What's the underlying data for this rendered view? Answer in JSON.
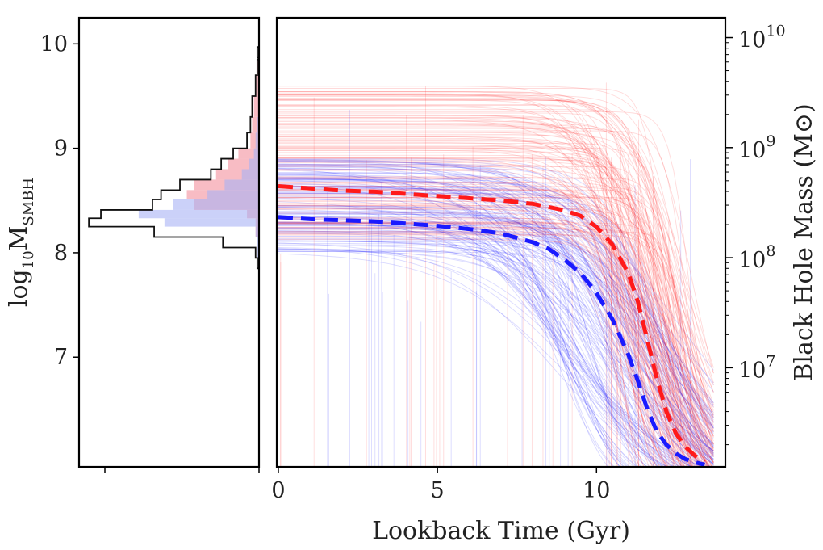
{
  "chart_data": [
    {
      "type": "histogram",
      "panel": "left",
      "orientation": "horizontal",
      "ylabel_main": "log",
      "ylabel_base": "10",
      "ylabel_var": "M",
      "ylabel_sub": "SMBH",
      "ylim": [
        5.95,
        10.25
      ],
      "yticks": [
        7,
        8,
        9,
        10
      ],
      "ytick_labels": [
        "7",
        "8",
        "9",
        "10"
      ],
      "colors": {
        "outline": "#111111",
        "red_fill": "#f5a6b0",
        "blue_fill": "#a8b2f5",
        "overlap_fill": "#c8a3d8"
      },
      "bins": [
        {
          "y0": 7.85,
          "y1": 7.95,
          "outline": 0.01,
          "red": 0.0,
          "blue": 0.005
        },
        {
          "y0": 7.95,
          "y1": 8.05,
          "outline": 0.02,
          "red": 0.0,
          "blue": 0.01
        },
        {
          "y0": 8.05,
          "y1": 8.15,
          "outline": 0.21,
          "red": 0.0,
          "blue": 0.01
        },
        {
          "y0": 8.15,
          "y1": 8.25,
          "outline": 0.61,
          "red": 0.02,
          "blue": 0.02
        },
        {
          "y0": 8.25,
          "y1": 8.33,
          "outline": 0.99,
          "red": 0.02,
          "blue": 0.55
        },
        {
          "y0": 8.33,
          "y1": 8.41,
          "outline": 0.92,
          "red": 0.07,
          "blue": 0.7
        },
        {
          "y0": 8.41,
          "y1": 8.51,
          "outline": 0.62,
          "red": 0.38,
          "blue": 0.5
        },
        {
          "y0": 8.51,
          "y1": 8.6,
          "outline": 0.57,
          "red": 0.42,
          "blue": 0.3
        },
        {
          "y0": 8.6,
          "y1": 8.7,
          "outline": 0.46,
          "red": 0.38,
          "blue": 0.2
        },
        {
          "y0": 8.7,
          "y1": 8.8,
          "outline": 0.28,
          "red": 0.25,
          "blue": 0.1
        },
        {
          "y0": 8.8,
          "y1": 8.9,
          "outline": 0.22,
          "red": 0.18,
          "blue": 0.06
        },
        {
          "y0": 8.9,
          "y1": 9.0,
          "outline": 0.15,
          "red": 0.12,
          "blue": 0.03
        },
        {
          "y0": 9.0,
          "y1": 9.15,
          "outline": 0.07,
          "red": 0.05,
          "blue": 0.02
        },
        {
          "y0": 9.15,
          "y1": 9.3,
          "outline": 0.05,
          "red": 0.04,
          "blue": 0.01
        },
        {
          "y0": 9.3,
          "y1": 9.5,
          "outline": 0.04,
          "red": 0.03,
          "blue": 0.005
        },
        {
          "y0": 9.5,
          "y1": 9.7,
          "outline": 0.02,
          "red": 0.02,
          "blue": 0.0
        },
        {
          "y0": 9.7,
          "y1": 9.85,
          "outline": 0.01,
          "red": 0.01,
          "blue": 0.0
        },
        {
          "y0": 9.88,
          "y1": 9.97,
          "outline": 0.01,
          "red": 0.0,
          "blue": 0.0
        }
      ]
    },
    {
      "type": "line",
      "panel": "right",
      "xlabel": "Lookback Time (Gyr)",
      "ylabel": "Black Hole Mass (M",
      "ylabel_symbol": "⊙",
      "ylabel_close": ")",
      "xlim": [
        -0.05,
        14.05
      ],
      "xticks": [
        0,
        5,
        10
      ],
      "xtick_labels": [
        "0",
        "5",
        "10"
      ],
      "yscale": "log",
      "ylim_log10": [
        6.1,
        10.18
      ],
      "yticks_log10": [
        7,
        8,
        9,
        10
      ],
      "ytick_base": "10",
      "ytick_exponents": [
        "7",
        "8",
        "9",
        "10"
      ],
      "colors": {
        "red": "#ff1a1a",
        "blue": "#1a1aff"
      },
      "series": [
        {
          "color": "#ff1a1a",
          "style": "dashed",
          "x": [
            0,
            1,
            2,
            3,
            4,
            5,
            6,
            7,
            8,
            9,
            9.5,
            10,
            10.5,
            11,
            11.3,
            11.6,
            11.9,
            12.2,
            12.5,
            12.8,
            13.1,
            13.4
          ],
          "y_log10": [
            8.65,
            8.63,
            8.61,
            8.6,
            8.58,
            8.56,
            8.54,
            8.52,
            8.49,
            8.43,
            8.38,
            8.28,
            8.12,
            7.86,
            7.6,
            7.25,
            6.9,
            6.6,
            6.4,
            6.28,
            6.2,
            6.15
          ]
        },
        {
          "color": "#1a1aff",
          "style": "dashed",
          "x": [
            0,
            1,
            2,
            3,
            4,
            5,
            6,
            7,
            8,
            8.5,
            9,
            9.5,
            10,
            10.5,
            11,
            11.3,
            11.6,
            11.9,
            12.2,
            12.5,
            12.8,
            13.1,
            13.4
          ],
          "y_log10": [
            8.37,
            8.35,
            8.34,
            8.33,
            8.31,
            8.29,
            8.26,
            8.22,
            8.14,
            8.08,
            7.98,
            7.86,
            7.68,
            7.44,
            7.12,
            6.88,
            6.62,
            6.42,
            6.3,
            6.22,
            6.17,
            6.14,
            6.12
          ]
        }
      ]
    }
  ]
}
